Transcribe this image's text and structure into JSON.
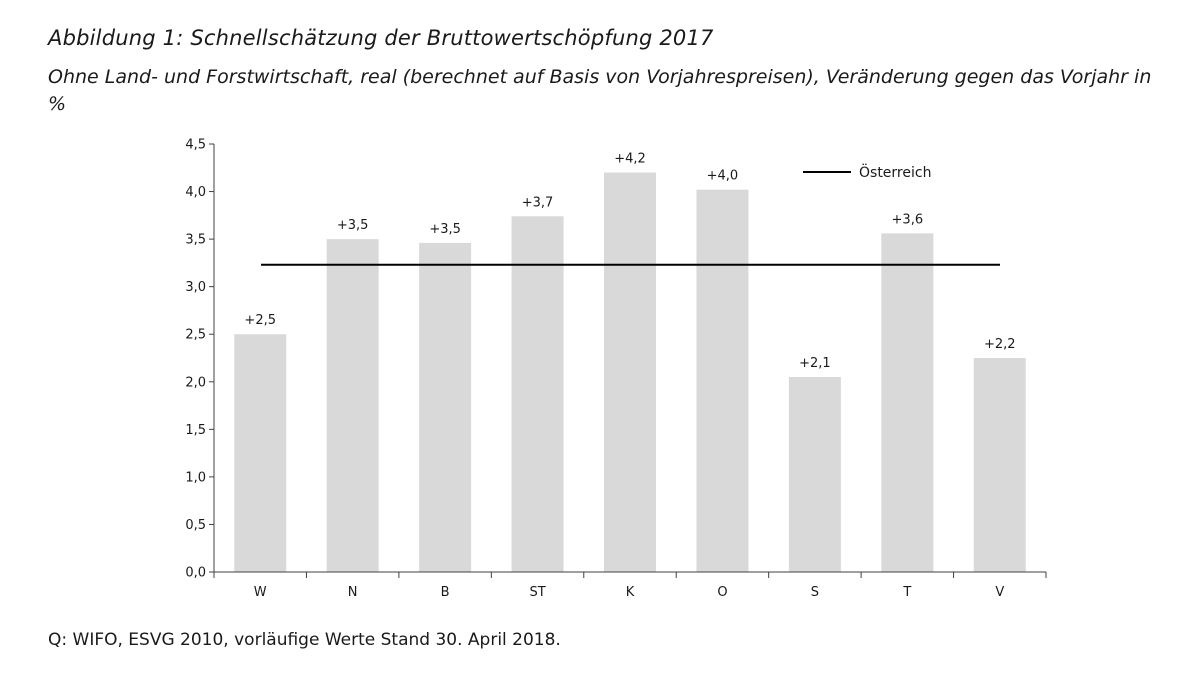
{
  "header": {
    "title": "Abbildung 1: Schnellschätzung der Bruttowertschöpfung 2017",
    "subtitle": "Ohne Land- und Forstwirtschaft, real (berechnet auf Basis von Vorjahrespreisen), Veränderung gegen das Vorjahr in %"
  },
  "footer": {
    "source": "Q: WIFO, ESVG 2010, vorläufige Werte Stand 30. April 2018."
  },
  "chart_data": {
    "type": "bar",
    "categories": [
      "W",
      "N",
      "B",
      "ST",
      "K",
      "O",
      "S",
      "T",
      "V"
    ],
    "values": [
      2.5,
      3.5,
      3.46,
      3.74,
      4.2,
      4.02,
      2.05,
      3.56,
      2.25
    ],
    "data_labels": [
      "+2,5",
      "+3,5",
      "+3,5",
      "+3,7",
      "+4,2",
      "+4,0",
      "+2,1",
      "+3,6",
      "+2,2"
    ],
    "reference_line": {
      "name": "Österreich",
      "value": 3.23
    },
    "legend_position": "top-right",
    "ylim": [
      0,
      4.5
    ],
    "yticks": [
      0,
      0.5,
      1.0,
      1.5,
      2.0,
      2.5,
      3.0,
      3.5,
      4.0,
      4.5
    ],
    "ytick_labels": [
      "0,0",
      "0,5",
      "1,0",
      "1,5",
      "2,0",
      "2,5",
      "3,0",
      "3,5",
      "4,0",
      "4,5"
    ],
    "colors": {
      "bar": "#d9d9d9",
      "line": "#000000",
      "axis": "#404040"
    },
    "grid": false
  }
}
